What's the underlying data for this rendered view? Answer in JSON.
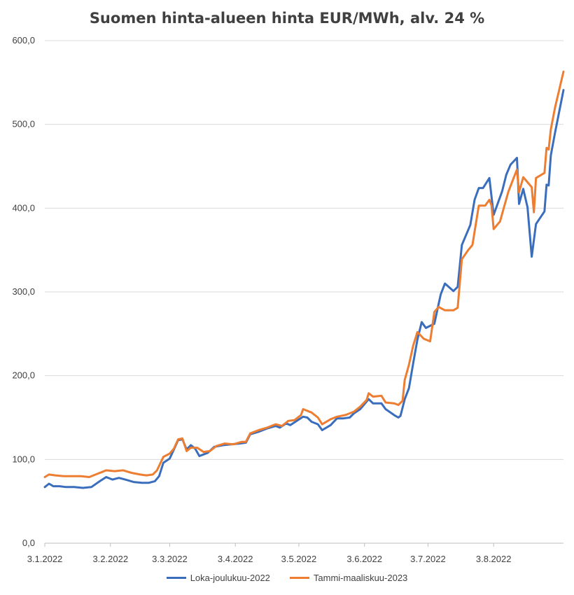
{
  "chart_data": {
    "type": "line",
    "title": "Suomen hinta-alueen hinta EUR/MWh, alv. 24 %",
    "xlabel": "",
    "ylabel": "",
    "ylim": [
      0,
      600
    ],
    "yticks": [
      "0,0",
      "100,0",
      "200,0",
      "300,0",
      "400,0",
      "500,0",
      "600,0"
    ],
    "ytick_values": [
      0,
      100,
      200,
      300,
      400,
      500,
      600
    ],
    "xticks": [
      {
        "label": "3.1.2022",
        "date": "2022-01-03"
      },
      {
        "label": "3.2.2022",
        "date": "2022-02-03"
      },
      {
        "label": "3.3.2022",
        "date": "2022-03-03"
      },
      {
        "label": "3.4.2022",
        "date": "2022-04-03"
      },
      {
        "label": "3.5.2022",
        "date": "2022-05-03"
      },
      {
        "label": "3.6.2022",
        "date": "2022-06-03"
      },
      {
        "label": "3.7.2022",
        "date": "2022-07-03"
      },
      {
        "label": "3.8.2022",
        "date": "2022-08-03"
      }
    ],
    "grid": true,
    "legend_position": "bottom",
    "series": [
      {
        "name": "Loka-joulukuu-2022",
        "color": "#3a6ebd",
        "points": [
          [
            "2022-01-03",
            67
          ],
          [
            "2022-01-05",
            71
          ],
          [
            "2022-01-07",
            68
          ],
          [
            "2022-01-10",
            68
          ],
          [
            "2022-01-13",
            67
          ],
          [
            "2022-01-17",
            67
          ],
          [
            "2022-01-21",
            66
          ],
          [
            "2022-01-25",
            67
          ],
          [
            "2022-01-29",
            74
          ],
          [
            "2022-02-01",
            79
          ],
          [
            "2022-02-04",
            76
          ],
          [
            "2022-02-07",
            78
          ],
          [
            "2022-02-10",
            76
          ],
          [
            "2022-02-14",
            73
          ],
          [
            "2022-02-18",
            72
          ],
          [
            "2022-02-21",
            72
          ],
          [
            "2022-02-24",
            74
          ],
          [
            "2022-02-26",
            80
          ],
          [
            "2022-02-28",
            96
          ],
          [
            "2022-03-03",
            101
          ],
          [
            "2022-03-05",
            112
          ],
          [
            "2022-03-07",
            123
          ],
          [
            "2022-03-09",
            124
          ],
          [
            "2022-03-11",
            112
          ],
          [
            "2022-03-13",
            117
          ],
          [
            "2022-03-15",
            113
          ],
          [
            "2022-03-17",
            104
          ],
          [
            "2022-03-19",
            106
          ],
          [
            "2022-03-21",
            108
          ],
          [
            "2022-03-24",
            115
          ],
          [
            "2022-03-28",
            117
          ],
          [
            "2022-04-01",
            118
          ],
          [
            "2022-04-05",
            119
          ],
          [
            "2022-04-08",
            120
          ],
          [
            "2022-04-10",
            130
          ],
          [
            "2022-04-14",
            133
          ],
          [
            "2022-04-18",
            137
          ],
          [
            "2022-04-22",
            140
          ],
          [
            "2022-04-24",
            138
          ],
          [
            "2022-04-27",
            143
          ],
          [
            "2022-04-29",
            141
          ],
          [
            "2022-05-02",
            146
          ],
          [
            "2022-05-05",
            151
          ],
          [
            "2022-05-07",
            150
          ],
          [
            "2022-05-09",
            145
          ],
          [
            "2022-05-12",
            142
          ],
          [
            "2022-05-14",
            135
          ],
          [
            "2022-05-18",
            141
          ],
          [
            "2022-05-21",
            149
          ],
          [
            "2022-05-24",
            149
          ],
          [
            "2022-05-27",
            150
          ],
          [
            "2022-05-29",
            155
          ],
          [
            "2022-06-01",
            160
          ],
          [
            "2022-06-05",
            172
          ],
          [
            "2022-06-07",
            167
          ],
          [
            "2022-06-11",
            167
          ],
          [
            "2022-06-13",
            160
          ],
          [
            "2022-06-17",
            153
          ],
          [
            "2022-06-19",
            150
          ],
          [
            "2022-06-20",
            152
          ],
          [
            "2022-06-22",
            172
          ],
          [
            "2022-06-24",
            185
          ],
          [
            "2022-06-26",
            215
          ],
          [
            "2022-06-28",
            243
          ],
          [
            "2022-06-30",
            264
          ],
          [
            "2022-07-02",
            257
          ],
          [
            "2022-07-06",
            262
          ],
          [
            "2022-07-09",
            297
          ],
          [
            "2022-07-11",
            310
          ],
          [
            "2022-07-15",
            301
          ],
          [
            "2022-07-17",
            306
          ],
          [
            "2022-07-19",
            356
          ],
          [
            "2022-07-23",
            380
          ],
          [
            "2022-07-25",
            410
          ],
          [
            "2022-07-27",
            424
          ],
          [
            "2022-07-29",
            424
          ],
          [
            "2022-08-01",
            436
          ],
          [
            "2022-08-03",
            392
          ],
          [
            "2022-08-07",
            420
          ],
          [
            "2022-08-09",
            440
          ],
          [
            "2022-08-11",
            452
          ],
          [
            "2022-08-14",
            460
          ],
          [
            "2022-08-15",
            405
          ],
          [
            "2022-08-17",
            423
          ],
          [
            "2022-08-19",
            401
          ],
          [
            "2022-08-21",
            342
          ],
          [
            "2022-08-23",
            381
          ],
          [
            "2022-08-27",
            396
          ],
          [
            "2022-08-28",
            428
          ],
          [
            "2022-08-29",
            427
          ],
          [
            "2022-08-30",
            463
          ],
          [
            "2022-09-01",
            490
          ],
          [
            "2022-09-05",
            541
          ]
        ]
      },
      {
        "name": "Tammi-maaliskuu-2023",
        "color": "#ed7d31",
        "points": [
          [
            "2022-01-03",
            79
          ],
          [
            "2022-01-05",
            82
          ],
          [
            "2022-01-08",
            81
          ],
          [
            "2022-01-12",
            80
          ],
          [
            "2022-01-16",
            80
          ],
          [
            "2022-01-20",
            80
          ],
          [
            "2022-01-24",
            79
          ],
          [
            "2022-01-27",
            82
          ],
          [
            "2022-01-30",
            85
          ],
          [
            "2022-02-01",
            87
          ],
          [
            "2022-02-05",
            86
          ],
          [
            "2022-02-09",
            87
          ],
          [
            "2022-02-13",
            84
          ],
          [
            "2022-02-17",
            82
          ],
          [
            "2022-02-20",
            81
          ],
          [
            "2022-02-23",
            82
          ],
          [
            "2022-02-25",
            87
          ],
          [
            "2022-02-28",
            103
          ],
          [
            "2022-03-03",
            107
          ],
          [
            "2022-03-05",
            113
          ],
          [
            "2022-03-07",
            124
          ],
          [
            "2022-03-09",
            125
          ],
          [
            "2022-03-11",
            110
          ],
          [
            "2022-03-13",
            114
          ],
          [
            "2022-03-16",
            114
          ],
          [
            "2022-03-19",
            109
          ],
          [
            "2022-03-22",
            110
          ],
          [
            "2022-03-25",
            116
          ],
          [
            "2022-03-29",
            119
          ],
          [
            "2022-04-02",
            118
          ],
          [
            "2022-04-06",
            121
          ],
          [
            "2022-04-08",
            121
          ],
          [
            "2022-04-10",
            131
          ],
          [
            "2022-04-14",
            135
          ],
          [
            "2022-04-18",
            138
          ],
          [
            "2022-04-22",
            142
          ],
          [
            "2022-04-25",
            140
          ],
          [
            "2022-04-28",
            146
          ],
          [
            "2022-05-01",
            147
          ],
          [
            "2022-05-04",
            153
          ],
          [
            "2022-05-05",
            160
          ],
          [
            "2022-05-09",
            156
          ],
          [
            "2022-05-12",
            150
          ],
          [
            "2022-05-14",
            142
          ],
          [
            "2022-05-18",
            148
          ],
          [
            "2022-05-21",
            151
          ],
          [
            "2022-05-25",
            153
          ],
          [
            "2022-05-29",
            157
          ],
          [
            "2022-06-01",
            163
          ],
          [
            "2022-06-04",
            171
          ],
          [
            "2022-06-05",
            179
          ],
          [
            "2022-06-07",
            175
          ],
          [
            "2022-06-11",
            176
          ],
          [
            "2022-06-13",
            168
          ],
          [
            "2022-06-17",
            167
          ],
          [
            "2022-06-19",
            165
          ],
          [
            "2022-06-21",
            170
          ],
          [
            "2022-06-22",
            195
          ],
          [
            "2022-06-24",
            213
          ],
          [
            "2022-06-26",
            236
          ],
          [
            "2022-06-28",
            252
          ],
          [
            "2022-07-01",
            244
          ],
          [
            "2022-07-04",
            241
          ],
          [
            "2022-07-06",
            276
          ],
          [
            "2022-07-08",
            282
          ],
          [
            "2022-07-11",
            278
          ],
          [
            "2022-07-15",
            278
          ],
          [
            "2022-07-17",
            281
          ],
          [
            "2022-07-19",
            339
          ],
          [
            "2022-07-22",
            350
          ],
          [
            "2022-07-24",
            356
          ],
          [
            "2022-07-27",
            403
          ],
          [
            "2022-07-30",
            403
          ],
          [
            "2022-08-01",
            410
          ],
          [
            "2022-08-02",
            403
          ],
          [
            "2022-08-03",
            375
          ],
          [
            "2022-08-05",
            381
          ],
          [
            "2022-08-06",
            384
          ],
          [
            "2022-08-08",
            402
          ],
          [
            "2022-08-10",
            420
          ],
          [
            "2022-08-12",
            433
          ],
          [
            "2022-08-14",
            446
          ],
          [
            "2022-08-15",
            419
          ],
          [
            "2022-08-17",
            437
          ],
          [
            "2022-08-21",
            425
          ],
          [
            "2022-08-22",
            395
          ],
          [
            "2022-08-23",
            436
          ],
          [
            "2022-08-27",
            442
          ],
          [
            "2022-08-28",
            472
          ],
          [
            "2022-08-29",
            470
          ],
          [
            "2022-08-30",
            494
          ],
          [
            "2022-09-01",
            520
          ],
          [
            "2022-09-05",
            563
          ]
        ]
      }
    ]
  }
}
